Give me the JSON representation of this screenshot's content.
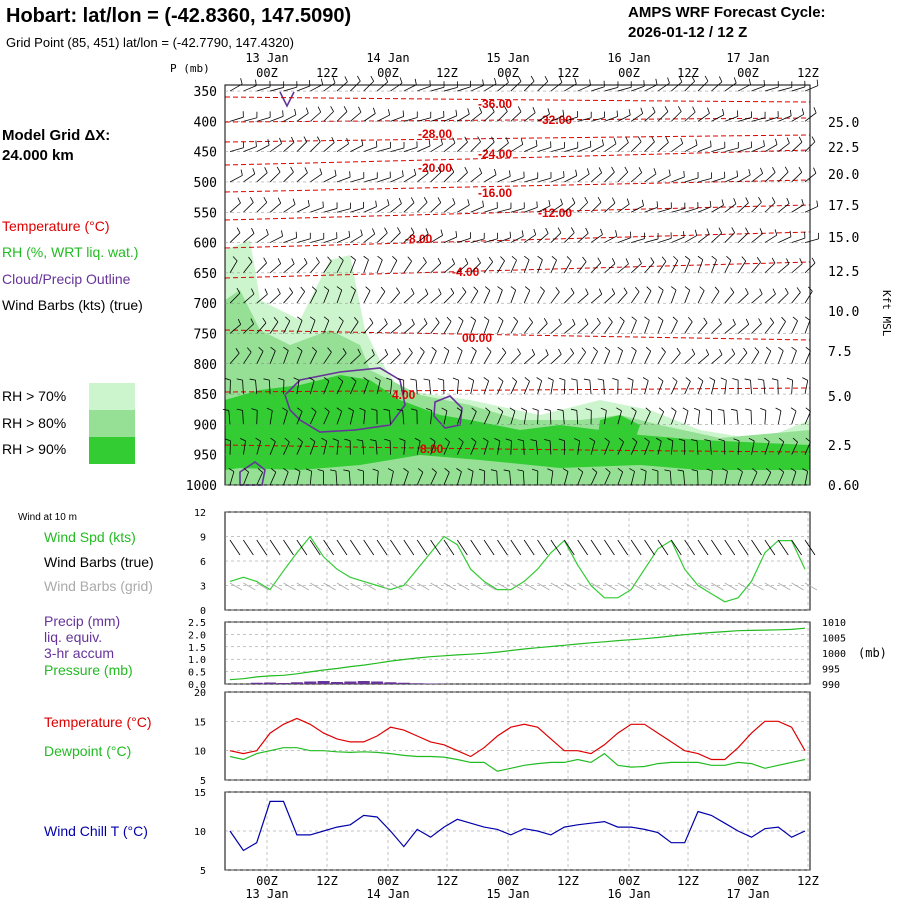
{
  "header": {
    "title": "Hobart:  lat/lon = (-42.8360, 147.5090)",
    "grid_point": "Grid Point (85, 451) lat/lon = (-42.7790, 147.4320)",
    "cycle_label": "AMPS WRF Forecast Cycle:",
    "cycle_value": "2026-01-12 / 12  Z"
  },
  "left_panel": {
    "model_grid_label": "Model Grid ΔX:",
    "model_grid_value": " 24.000 km",
    "legend_temperature": "Temperature (°C)",
    "legend_rh": "RH (%, WRT liq. wat.)",
    "legend_cloud": "Cloud/Precip Outline",
    "legend_wind": "Wind Barbs (kts) (true)",
    "rh_gt_70": "RH > 70%",
    "rh_gt_80": "RH > 80%",
    "rh_gt_90": "RH > 90%",
    "wind_at_10m": "Wind at 10 m",
    "wind_spd": "Wind Spd (kts)",
    "wind_barbs_true": "Wind Barbs (true)",
    "wind_barbs_grid": "Wind Barbs (grid)",
    "precip_1": "Precip (mm)",
    "precip_2": "liq. equiv.",
    "precip_3": "3-hr accum",
    "pressure": "Pressure (mb)",
    "temperature": "Temperature (°C)",
    "dewpoint": "Dewpoint (°C)",
    "wind_chill": "Wind Chill T (°C)"
  },
  "colors": {
    "temperature": "#dd0000",
    "rh70": "#cdf5cd",
    "rh80": "#95e095",
    "rh90": "#33cc33",
    "cloud_outline": "#663399",
    "wind_speed": "#33cc33",
    "pressure": "#22bb22",
    "dewpoint": "#22bb22",
    "wind_chill": "#0000aa",
    "precip": "#663399",
    "grid_barbs": "#aaaaaa"
  },
  "chart_data": [
    {
      "type": "heatmap",
      "name": "time-height cross section",
      "y_axis_label": "P (mb)",
      "y_axis_right_label": "Kft MSL",
      "pressure_levels": [
        350,
        400,
        450,
        500,
        550,
        600,
        650,
        700,
        750,
        800,
        850,
        900,
        950,
        1000
      ],
      "kft_ticks": [
        "25.0",
        "22.5",
        "20.0",
        "17.5",
        "15.0",
        "12.5",
        "10.0",
        "7.5",
        "5.0",
        "2.5",
        "0.60"
      ],
      "time_ticks_top": [
        "00Z",
        "12Z",
        "00Z",
        "12Z",
        "00Z",
        "12Z",
        "00Z",
        "12Z",
        "00Z",
        "12Z"
      ],
      "date_labels_top": [
        "13 Jan",
        "14 Jan",
        "15 Jan",
        "16 Jan",
        "17 Jan"
      ],
      "temperature_contour_labels": [
        "-36.00",
        "-32.00",
        "-28.00",
        "-24.00",
        "-20.00",
        "-16.00",
        "-12.00",
        "-8.00",
        "-4.00",
        "00.00",
        "4.00",
        "8.00"
      ]
    },
    {
      "type": "line",
      "name": "wind speed 10 m",
      "ylim": [
        0,
        12
      ],
      "y_ticks": [
        "0",
        "3",
        "6",
        "9",
        "12"
      ],
      "values": [
        3.5,
        4.0,
        3.5,
        2.5,
        4.8,
        7.0,
        9.0,
        6.5,
        5.0,
        4.0,
        3.5,
        3.0,
        2.5,
        3.0,
        5.0,
        7.0,
        9.0,
        8.0,
        5.0,
        3.5,
        2.5,
        2.5,
        3.5,
        5.0,
        7.0,
        8.5,
        5.5,
        3.0,
        1.5,
        1.5,
        2.5,
        5.0,
        7.5,
        8.5,
        5.0,
        3.0,
        2.0,
        1.0,
        1.5,
        3.5,
        7.0,
        8.5,
        8.5,
        5.0
      ]
    },
    {
      "type": "line",
      "name": "pressure and precip",
      "precip_ylim": [
        0,
        2.5
      ],
      "precip_ticks": [
        "0.0",
        "0.5",
        "1.0",
        "1.5",
        "2.0",
        "2.5"
      ],
      "pressure_ylim": [
        990,
        1010
      ],
      "pressure_ticks": [
        "990",
        "995",
        "1000",
        "1005",
        "1010"
      ],
      "pressure_unit": "(mb)",
      "pressure": [
        991.4,
        991.7,
        992.3,
        992.6,
        992.8,
        993.3,
        993.9,
        994.5,
        995.0,
        995.6,
        996.1,
        996.7,
        997.4,
        997.9,
        998.4,
        998.8,
        999.1,
        999.4,
        999.6,
        999.9,
        1000.3,
        1000.8,
        1001.3,
        1001.7,
        1002.1,
        1002.5,
        1002.9,
        1003.3,
        1003.6,
        1004.0,
        1004.3,
        1004.6,
        1005.0,
        1005.5,
        1005.9,
        1006.3,
        1006.6,
        1006.9,
        1007.2,
        1007.3,
        1007.4,
        1007.5,
        1007.6,
        1008.0
      ],
      "precip": [
        0.0,
        0.0,
        0.05,
        0.06,
        0.04,
        0.07,
        0.1,
        0.12,
        0.08,
        0.1,
        0.12,
        0.1,
        0.07,
        0.05,
        0.03,
        0.02,
        0.01,
        0.0,
        0.0,
        0.0,
        0.0,
        0.0,
        0.0,
        0.0,
        0.0,
        0.0,
        0.0,
        0.0,
        0.0,
        0.0,
        0.0,
        0.0,
        0.0,
        0.0,
        0.0,
        0.0,
        0.0,
        0.0,
        0.0,
        0.0,
        0.0,
        0.0,
        0.0,
        0.0
      ]
    },
    {
      "type": "line",
      "name": "temperature and dewpoint",
      "ylim": [
        5,
        20
      ],
      "y_ticks": [
        "5",
        "10",
        "15",
        "20"
      ],
      "series": [
        {
          "name": "Temperature (°C)",
          "values": [
            10.0,
            9.5,
            10.0,
            13.0,
            14.5,
            15.5,
            14.5,
            13.0,
            12.0,
            11.5,
            11.5,
            12.5,
            14.0,
            13.5,
            12.5,
            11.5,
            11.0,
            10.0,
            9.0,
            10.5,
            12.5,
            14.0,
            14.5,
            14.0,
            12.0,
            10.0,
            10.0,
            9.5,
            11.0,
            13.0,
            14.5,
            14.5,
            13.0,
            11.5,
            10.0,
            9.5,
            8.5,
            8.5,
            10.5,
            13.0,
            15.0,
            15.0,
            14.0,
            10.0
          ]
        },
        {
          "name": "Dewpoint (°C)",
          "values": [
            9.0,
            8.5,
            9.5,
            10.0,
            10.5,
            10.5,
            10.0,
            10.0,
            9.8,
            9.7,
            9.8,
            9.7,
            9.5,
            9.2,
            9.0,
            9.0,
            8.9,
            8.5,
            8.0,
            8.0,
            6.5,
            7.0,
            7.5,
            7.8,
            8.0,
            8.0,
            8.5,
            8.0,
            9.5,
            7.5,
            7.2,
            7.3,
            7.8,
            8.0,
            8.0,
            8.0,
            7.5,
            7.5,
            8.0,
            7.8,
            7.0,
            7.5,
            8.0,
            8.5
          ]
        }
      ]
    },
    {
      "type": "line",
      "name": "wind chill",
      "ylim": [
        5,
        15
      ],
      "y_ticks": [
        "5",
        "10",
        "15"
      ],
      "values": [
        10.0,
        7.5,
        8.5,
        13.8,
        13.8,
        9.5,
        9.5,
        10.0,
        10.5,
        10.8,
        12.0,
        11.8,
        10.0,
        8.0,
        10.2,
        9.2,
        10.5,
        11.5,
        11.0,
        10.5,
        10.2,
        9.5,
        10.3,
        10.0,
        9.5,
        10.5,
        10.8,
        11.0,
        11.2,
        10.5,
        10.5,
        10.2,
        9.8,
        8.5,
        8.5,
        12.5,
        12.0,
        11.0,
        10.0,
        9.2,
        10.3,
        10.5,
        9.2,
        10.0
      ]
    }
  ]
}
